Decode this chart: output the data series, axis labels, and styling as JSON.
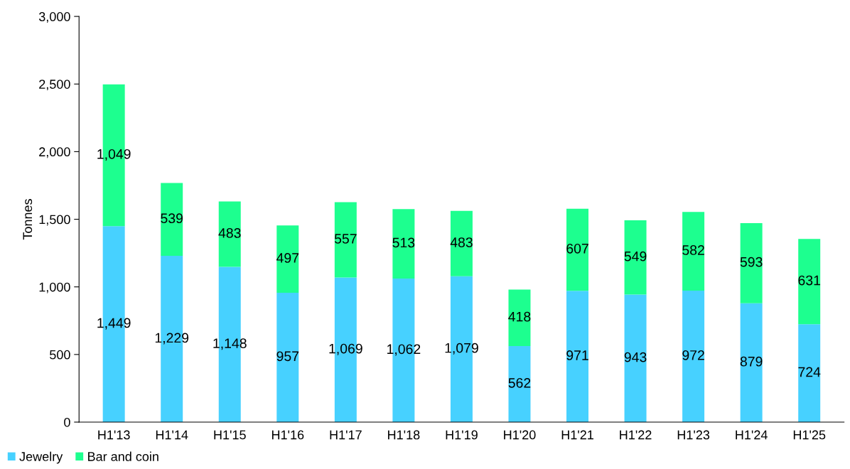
{
  "chart_data": {
    "type": "bar",
    "stacked": true,
    "ylabel": "Tonnes",
    "categories": [
      "H1'13",
      "H1'14",
      "H1'15",
      "H1'16",
      "H1'17",
      "H1'18",
      "H1'19",
      "H1'20",
      "H1'21",
      "H1'22",
      "H1'23",
      "H1'24",
      "H1'25"
    ],
    "series": [
      {
        "name": "Jewelry",
        "color": "#47d1ff",
        "values": [
          1449,
          1229,
          1148,
          957,
          1069,
          1062,
          1079,
          562,
          971,
          943,
          972,
          879,
          724
        ],
        "value_labels": [
          "1,449",
          "1,229",
          "1,148",
          "957",
          "1,069",
          "1,062",
          "1,079",
          "562",
          "971",
          "943",
          "972",
          "879",
          "724"
        ]
      },
      {
        "name": "Bar and coin",
        "color": "#1dff8f",
        "values": [
          1049,
          539,
          483,
          497,
          557,
          513,
          483,
          418,
          607,
          549,
          582,
          593,
          631
        ],
        "value_labels": [
          "1,049",
          "539",
          "483",
          "497",
          "557",
          "513",
          "483",
          "418",
          "607",
          "549",
          "582",
          "593",
          "631"
        ]
      }
    ],
    "ylim": [
      0,
      3000
    ],
    "yticks": [
      {
        "value": 0,
        "label": "0"
      },
      {
        "value": 500,
        "label": "500"
      },
      {
        "value": 1000,
        "label": "1,000"
      },
      {
        "value": 1500,
        "label": "1,500"
      },
      {
        "value": 2000,
        "label": "2,000"
      },
      {
        "value": 2500,
        "label": "2,500"
      },
      {
        "value": 3000,
        "label": "3,000"
      }
    ],
    "grid": false,
    "legend": "bottom left"
  }
}
